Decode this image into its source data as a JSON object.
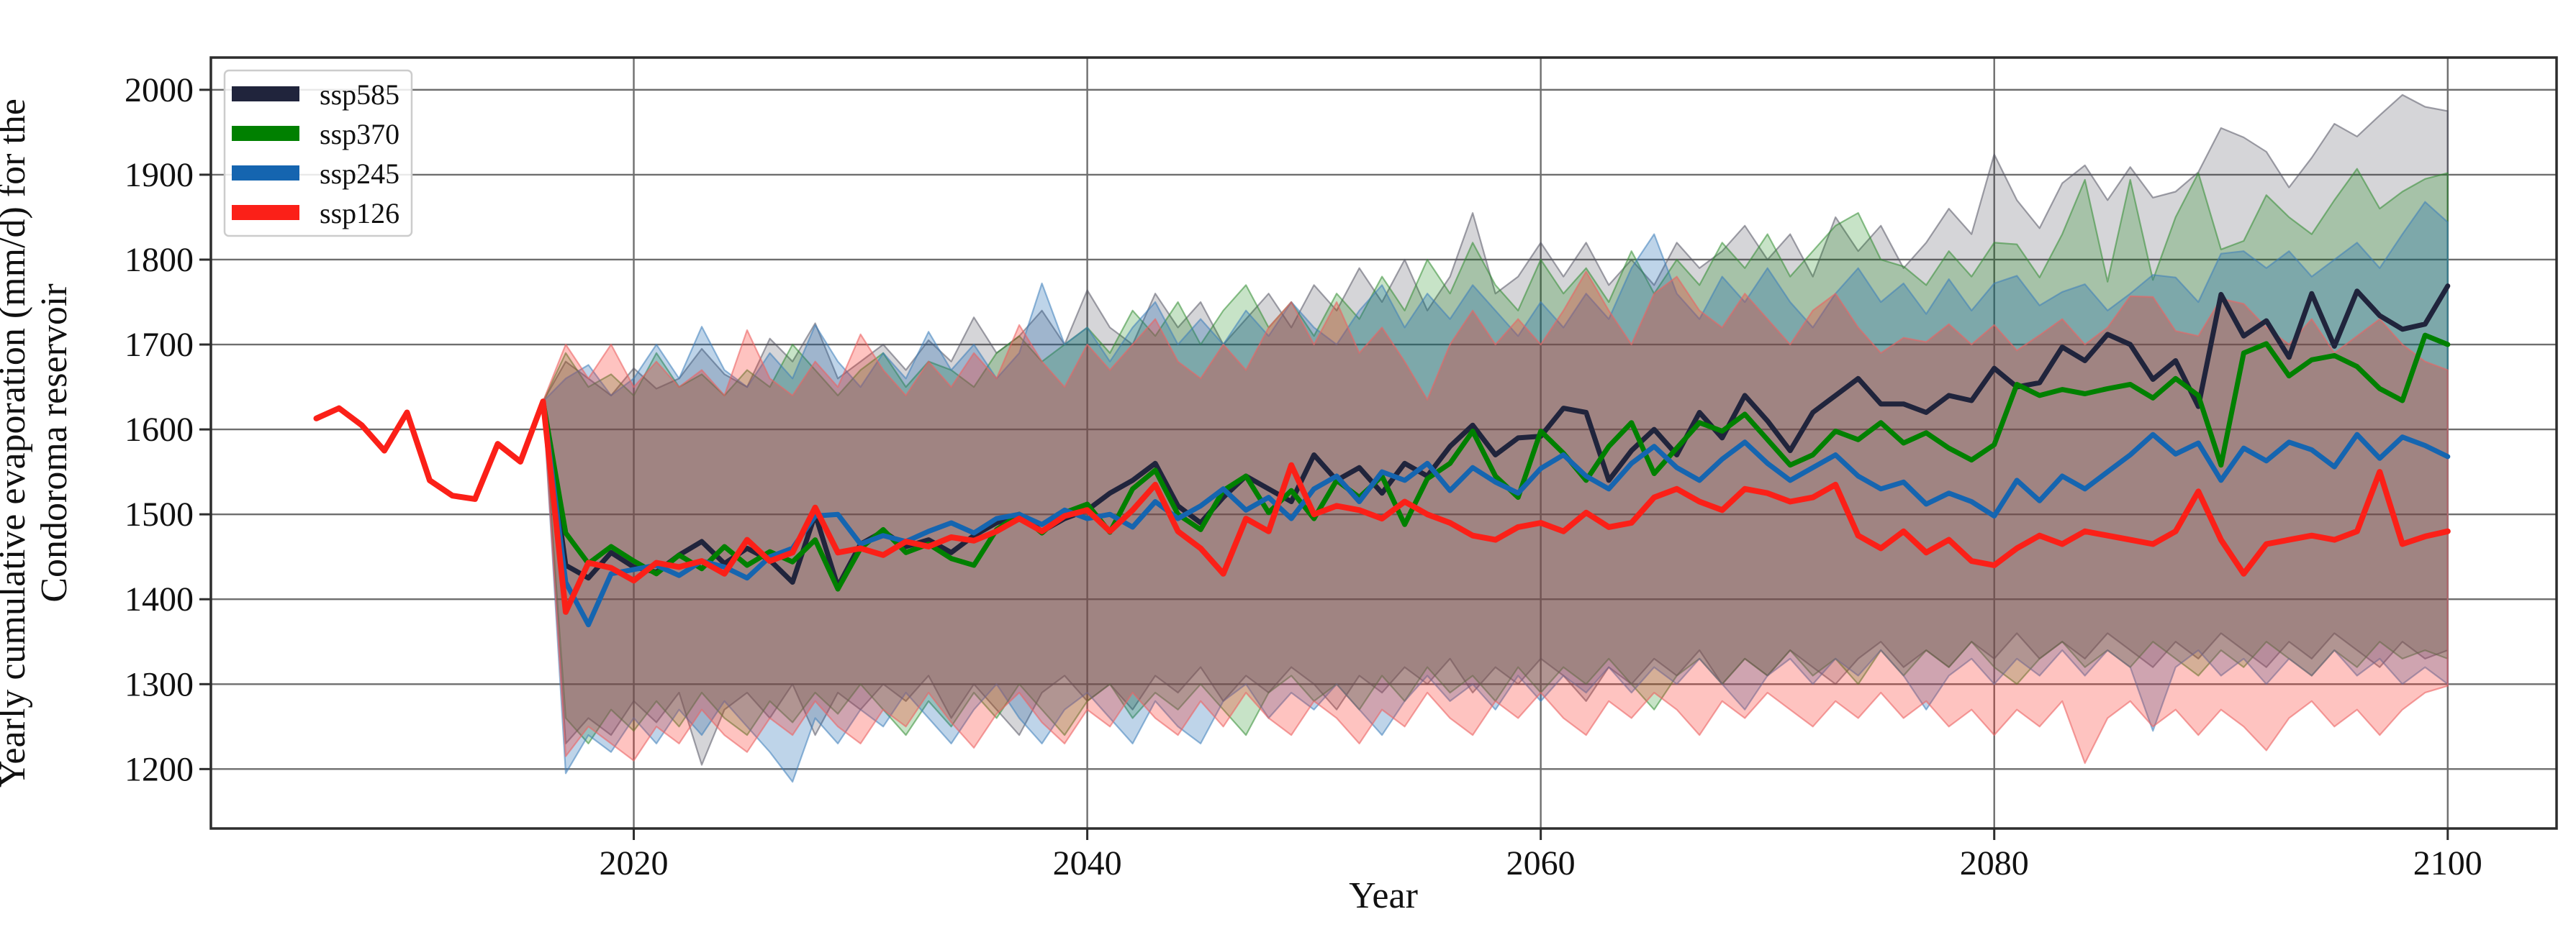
{
  "figure": {
    "ylabel_line1": "Yearly cumulative evaporation (mm/d) for the",
    "ylabel_line2": "Condoroma reservoir",
    "xlabel": "Year"
  },
  "legend": {
    "position": "upper-left",
    "items": [
      {
        "label": "ssp585",
        "color": "#20243c"
      },
      {
        "label": "ssp370",
        "color": "#008000"
      },
      {
        "label": "ssp245",
        "color": "#1565b0"
      },
      {
        "label": "ssp126",
        "color": "#fb2018"
      }
    ]
  },
  "chart_data": {
    "type": "line",
    "title": "",
    "xlabel": "Year",
    "ylabel": "Yearly cumulative evaporation (mm/d) for the Condoroma reservoir",
    "grid": true,
    "legend_position": "upper left",
    "xlim": [
      2001.35,
      2104.8
    ],
    "ylim": [
      1130,
      2038
    ],
    "x_ticks": [
      2020,
      2040,
      2060,
      2080,
      2100
    ],
    "y_ticks": [
      1200,
      1300,
      1400,
      1500,
      1600,
      1700,
      1800,
      1900,
      2000
    ],
    "series": [
      {
        "name": "ssp585",
        "line_color": "#20243c",
        "band_fill": "rgba(45,45,58,0.20)",
        "band_edge": "rgba(85,85,100,0.55)",
        "line_width": 7,
        "start_year": 2016,
        "band_start_year": 2016,
        "values": [
          1633,
          1440,
          1425,
          1455,
          1438,
          1432,
          1452,
          1468,
          1442,
          1460,
          1446,
          1420,
          1500,
          1415,
          1465,
          1480,
          1462,
          1470,
          1455,
          1475,
          1490,
          1500,
          1480,
          1495,
          1505,
          1525,
          1540,
          1560,
          1510,
          1490,
          1520,
          1545,
          1530,
          1515,
          1570,
          1540,
          1555,
          1525,
          1560,
          1545,
          1580,
          1605,
          1570,
          1590,
          1592,
          1625,
          1620,
          1540,
          1575,
          1600,
          1570,
          1620,
          1590,
          1640,
          1610,
          1575,
          1620,
          1640,
          1660,
          1630,
          1630,
          1620,
          1640,
          1634,
          1672,
          1650,
          1655,
          1697,
          1681,
          1712,
          1700,
          1659,
          1681,
          1627,
          1759,
          1710,
          1728,
          1685,
          1760,
          1698,
          1763,
          1734,
          1718,
          1724,
          1769
        ],
        "band_upper": [
          1633,
          1680,
          1660,
          1640,
          1672,
          1648,
          1660,
          1695,
          1665,
          1650,
          1707,
          1680,
          1725,
          1660,
          1680,
          1700,
          1670,
          1705,
          1680,
          1732,
          1690,
          1710,
          1740,
          1700,
          1764,
          1720,
          1700,
          1760,
          1720,
          1750,
          1700,
          1730,
          1760,
          1720,
          1770,
          1740,
          1790,
          1750,
          1800,
          1740,
          1780,
          1855,
          1760,
          1780,
          1820,
          1780,
          1820,
          1770,
          1800,
          1770,
          1820,
          1790,
          1810,
          1840,
          1800,
          1830,
          1780,
          1850,
          1810,
          1840,
          1790,
          1820,
          1860,
          1830,
          1924,
          1870,
          1837,
          1890,
          1911,
          1870,
          1909,
          1873,
          1880,
          1903,
          1955,
          1944,
          1927,
          1885,
          1920,
          1960,
          1945,
          1970,
          1994,
          1980,
          1975
        ],
        "band_lower": [
          1633,
          1230,
          1260,
          1240,
          1280,
          1255,
          1290,
          1205,
          1270,
          1290,
          1260,
          1300,
          1240,
          1290,
          1270,
          1300,
          1280,
          1310,
          1260,
          1300,
          1270,
          1240,
          1290,
          1310,
          1280,
          1300,
          1270,
          1310,
          1290,
          1320,
          1280,
          1310,
          1290,
          1320,
          1300,
          1270,
          1310,
          1290,
          1320,
          1300,
          1330,
          1290,
          1320,
          1300,
          1330,
          1310,
          1280,
          1320,
          1300,
          1330,
          1310,
          1340,
          1300,
          1330,
          1310,
          1340,
          1320,
          1300,
          1330,
          1350,
          1320,
          1340,
          1320,
          1350,
          1330,
          1360,
          1330,
          1350,
          1330,
          1360,
          1340,
          1320,
          1350,
          1330,
          1360,
          1340,
          1320,
          1350,
          1330,
          1360,
          1340,
          1320,
          1350,
          1330,
          1340
        ]
      },
      {
        "name": "ssp370",
        "line_color": "#008000",
        "band_fill": "rgba(0,128,0,0.22)",
        "band_edge": "rgba(50,140,50,0.55)",
        "line_width": 7,
        "start_year": 2016,
        "band_start_year": 2016,
        "values": [
          1633,
          1478,
          1442,
          1462,
          1445,
          1430,
          1452,
          1436,
          1462,
          1440,
          1456,
          1444,
          1470,
          1412,
          1460,
          1482,
          1455,
          1465,
          1448,
          1440,
          1482,
          1500,
          1478,
          1502,
          1512,
          1479,
          1530,
          1552,
          1500,
          1482,
          1528,
          1545,
          1502,
          1528,
          1495,
          1540,
          1520,
          1545,
          1488,
          1542,
          1560,
          1598,
          1545,
          1520,
          1598,
          1572,
          1540,
          1580,
          1608,
          1548,
          1578,
          1608,
          1598,
          1618,
          1588,
          1558,
          1570,
          1598,
          1588,
          1608,
          1584,
          1596,
          1578,
          1564,
          1582,
          1653,
          1640,
          1647,
          1642,
          1648,
          1653,
          1637,
          1660,
          1640,
          1558,
          1690,
          1701,
          1663,
          1682,
          1687,
          1674,
          1648,
          1634,
          1711,
          1700
        ],
        "band_upper": [
          1633,
          1690,
          1650,
          1665,
          1640,
          1690,
          1650,
          1665,
          1640,
          1670,
          1650,
          1700,
          1670,
          1640,
          1670,
          1690,
          1650,
          1680,
          1670,
          1650,
          1690,
          1710,
          1680,
          1700,
          1720,
          1690,
          1740,
          1710,
          1750,
          1700,
          1740,
          1770,
          1720,
          1750,
          1710,
          1760,
          1730,
          1780,
          1740,
          1800,
          1760,
          1820,
          1770,
          1740,
          1800,
          1760,
          1790,
          1750,
          1810,
          1760,
          1800,
          1770,
          1820,
          1790,
          1830,
          1780,
          1810,
          1840,
          1855,
          1800,
          1792,
          1770,
          1810,
          1780,
          1820,
          1818,
          1779,
          1830,
          1894,
          1774,
          1894,
          1776,
          1850,
          1902,
          1812,
          1822,
          1876,
          1850,
          1830,
          1870,
          1907,
          1860,
          1880,
          1895,
          1902
        ],
        "band_lower": [
          1633,
          1260,
          1230,
          1270,
          1245,
          1280,
          1250,
          1290,
          1260,
          1240,
          1280,
          1255,
          1290,
          1265,
          1300,
          1270,
          1240,
          1280,
          1250,
          1290,
          1260,
          1300,
          1270,
          1240,
          1280,
          1300,
          1260,
          1290,
          1270,
          1300,
          1270,
          1240,
          1290,
          1310,
          1280,
          1300,
          1270,
          1310,
          1280,
          1320,
          1290,
          1310,
          1280,
          1320,
          1290,
          1320,
          1300,
          1330,
          1300,
          1270,
          1310,
          1330,
          1300,
          1330,
          1310,
          1340,
          1310,
          1330,
          1300,
          1340,
          1310,
          1340,
          1320,
          1350,
          1320,
          1300,
          1330,
          1350,
          1320,
          1340,
          1320,
          1350,
          1330,
          1310,
          1340,
          1320,
          1350,
          1330,
          1310,
          1340,
          1320,
          1350,
          1330,
          1340,
          1330
        ]
      },
      {
        "name": "ssp245",
        "line_color": "#1565b0",
        "band_fill": "rgba(21,101,176,0.28)",
        "band_edge": "rgba(60,125,185,0.55)",
        "line_width": 7,
        "start_year": 2016,
        "band_start_year": 2016,
        "values": [
          1633,
          1420,
          1370,
          1430,
          1435,
          1440,
          1428,
          1445,
          1438,
          1425,
          1450,
          1460,
          1498,
          1500,
          1465,
          1475,
          1468,
          1480,
          1490,
          1478,
          1495,
          1500,
          1488,
          1505,
          1495,
          1500,
          1485,
          1515,
          1495,
          1510,
          1530,
          1505,
          1520,
          1495,
          1530,
          1545,
          1515,
          1550,
          1540,
          1560,
          1528,
          1555,
          1538,
          1525,
          1554,
          1570,
          1545,
          1530,
          1560,
          1580,
          1555,
          1540,
          1565,
          1585,
          1560,
          1540,
          1555,
          1570,
          1545,
          1530,
          1538,
          1512,
          1525,
          1515,
          1498,
          1540,
          1516,
          1545,
          1530,
          1550,
          1570,
          1594,
          1571,
          1584,
          1540,
          1578,
          1563,
          1585,
          1576,
          1556,
          1594,
          1566,
          1591,
          1581,
          1568
        ],
        "band_upper": [
          1633,
          1660,
          1676,
          1640,
          1660,
          1700,
          1660,
          1721,
          1670,
          1650,
          1690,
          1660,
          1723,
          1680,
          1650,
          1690,
          1660,
          1715,
          1670,
          1700,
          1660,
          1690,
          1772,
          1700,
          1720,
          1680,
          1720,
          1750,
          1700,
          1730,
          1700,
          1740,
          1710,
          1750,
          1720,
          1700,
          1740,
          1770,
          1720,
          1760,
          1730,
          1770,
          1740,
          1710,
          1750,
          1720,
          1760,
          1730,
          1790,
          1830,
          1760,
          1730,
          1780,
          1750,
          1790,
          1750,
          1720,
          1760,
          1790,
          1750,
          1772,
          1736,
          1777,
          1740,
          1772,
          1781,
          1746,
          1762,
          1771,
          1740,
          1760,
          1782,
          1779,
          1750,
          1807,
          1810,
          1790,
          1810,
          1780,
          1800,
          1820,
          1790,
          1830,
          1868,
          1844
        ],
        "band_lower": [
          1633,
          1195,
          1240,
          1220,
          1260,
          1230,
          1270,
          1240,
          1280,
          1250,
          1220,
          1185,
          1260,
          1230,
          1270,
          1250,
          1290,
          1260,
          1230,
          1270,
          1300,
          1260,
          1230,
          1270,
          1290,
          1260,
          1230,
          1280,
          1250,
          1230,
          1280,
          1300,
          1260,
          1290,
          1270,
          1300,
          1270,
          1240,
          1280,
          1310,
          1280,
          1300,
          1270,
          1310,
          1280,
          1310,
          1290,
          1320,
          1290,
          1320,
          1300,
          1330,
          1300,
          1270,
          1310,
          1330,
          1300,
          1330,
          1310,
          1340,
          1310,
          1270,
          1310,
          1330,
          1300,
          1330,
          1310,
          1340,
          1310,
          1340,
          1320,
          1245,
          1320,
          1340,
          1310,
          1330,
          1300,
          1330,
          1310,
          1340,
          1310,
          1330,
          1300,
          1320,
          1300
        ]
      },
      {
        "name": "ssp126",
        "line_color": "#fb2018",
        "band_fill": "rgba(252,40,30,0.28)",
        "band_edge": "rgba(235,100,100,0.60)",
        "line_width": 8,
        "start_year": 2006,
        "band_start_year": 2016,
        "values": [
          1613,
          1625,
          1605,
          1575,
          1620,
          1540,
          1522,
          1518,
          1583,
          1562,
          1633,
          1385,
          1443,
          1437,
          1422,
          1443,
          1438,
          1445,
          1430,
          1470,
          1445,
          1455,
          1508,
          1455,
          1460,
          1452,
          1468,
          1462,
          1473,
          1469,
          1480,
          1495,
          1480,
          1498,
          1505,
          1480,
          1505,
          1535,
          1480,
          1460,
          1430,
          1495,
          1480,
          1558,
          1500,
          1510,
          1505,
          1495,
          1515,
          1500,
          1490,
          1475,
          1470,
          1485,
          1490,
          1480,
          1502,
          1485,
          1490,
          1520,
          1530,
          1515,
          1505,
          1530,
          1525,
          1515,
          1520,
          1535,
          1475,
          1460,
          1480,
          1455,
          1470,
          1445,
          1440,
          1460,
          1475,
          1465,
          1480,
          1475,
          1470,
          1465,
          1480,
          1527,
          1470,
          1430,
          1465,
          1470,
          1475,
          1470,
          1480,
          1550,
          1465,
          1474,
          1480
        ],
        "band_upper": [
          1633,
          1700,
          1660,
          1700,
          1650,
          1680,
          1650,
          1670,
          1640,
          1717,
          1660,
          1640,
          1680,
          1650,
          1712,
          1670,
          1640,
          1680,
          1650,
          1690,
          1660,
          1723,
          1680,
          1650,
          1700,
          1670,
          1700,
          1730,
          1680,
          1660,
          1700,
          1670,
          1720,
          1750,
          1700,
          1750,
          1690,
          1720,
          1680,
          1635,
          1700,
          1740,
          1700,
          1730,
          1700,
          1740,
          1786,
          1740,
          1700,
          1760,
          1780,
          1740,
          1720,
          1760,
          1730,
          1700,
          1740,
          1760,
          1720,
          1690,
          1708,
          1703,
          1724,
          1700,
          1723,
          1693,
          1711,
          1730,
          1700,
          1720,
          1757,
          1756,
          1716,
          1710,
          1754,
          1748,
          1720,
          1700,
          1730,
          1690,
          1710,
          1730,
          1700,
          1680,
          1670
        ],
        "band_lower": [
          1633,
          1215,
          1250,
          1230,
          1210,
          1250,
          1230,
          1270,
          1240,
          1220,
          1260,
          1240,
          1280,
          1250,
          1230,
          1270,
          1250,
          1290,
          1255,
          1225,
          1265,
          1290,
          1255,
          1230,
          1270,
          1250,
          1290,
          1260,
          1240,
          1280,
          1250,
          1290,
          1260,
          1240,
          1280,
          1260,
          1230,
          1270,
          1250,
          1290,
          1260,
          1240,
          1280,
          1260,
          1290,
          1260,
          1240,
          1280,
          1260,
          1290,
          1270,
          1240,
          1280,
          1260,
          1290,
          1270,
          1250,
          1280,
          1260,
          1290,
          1260,
          1280,
          1250,
          1270,
          1240,
          1270,
          1250,
          1280,
          1207,
          1260,
          1280,
          1250,
          1270,
          1240,
          1270,
          1250,
          1222,
          1260,
          1280,
          1250,
          1270,
          1240,
          1270,
          1290,
          1298
        ]
      }
    ]
  }
}
